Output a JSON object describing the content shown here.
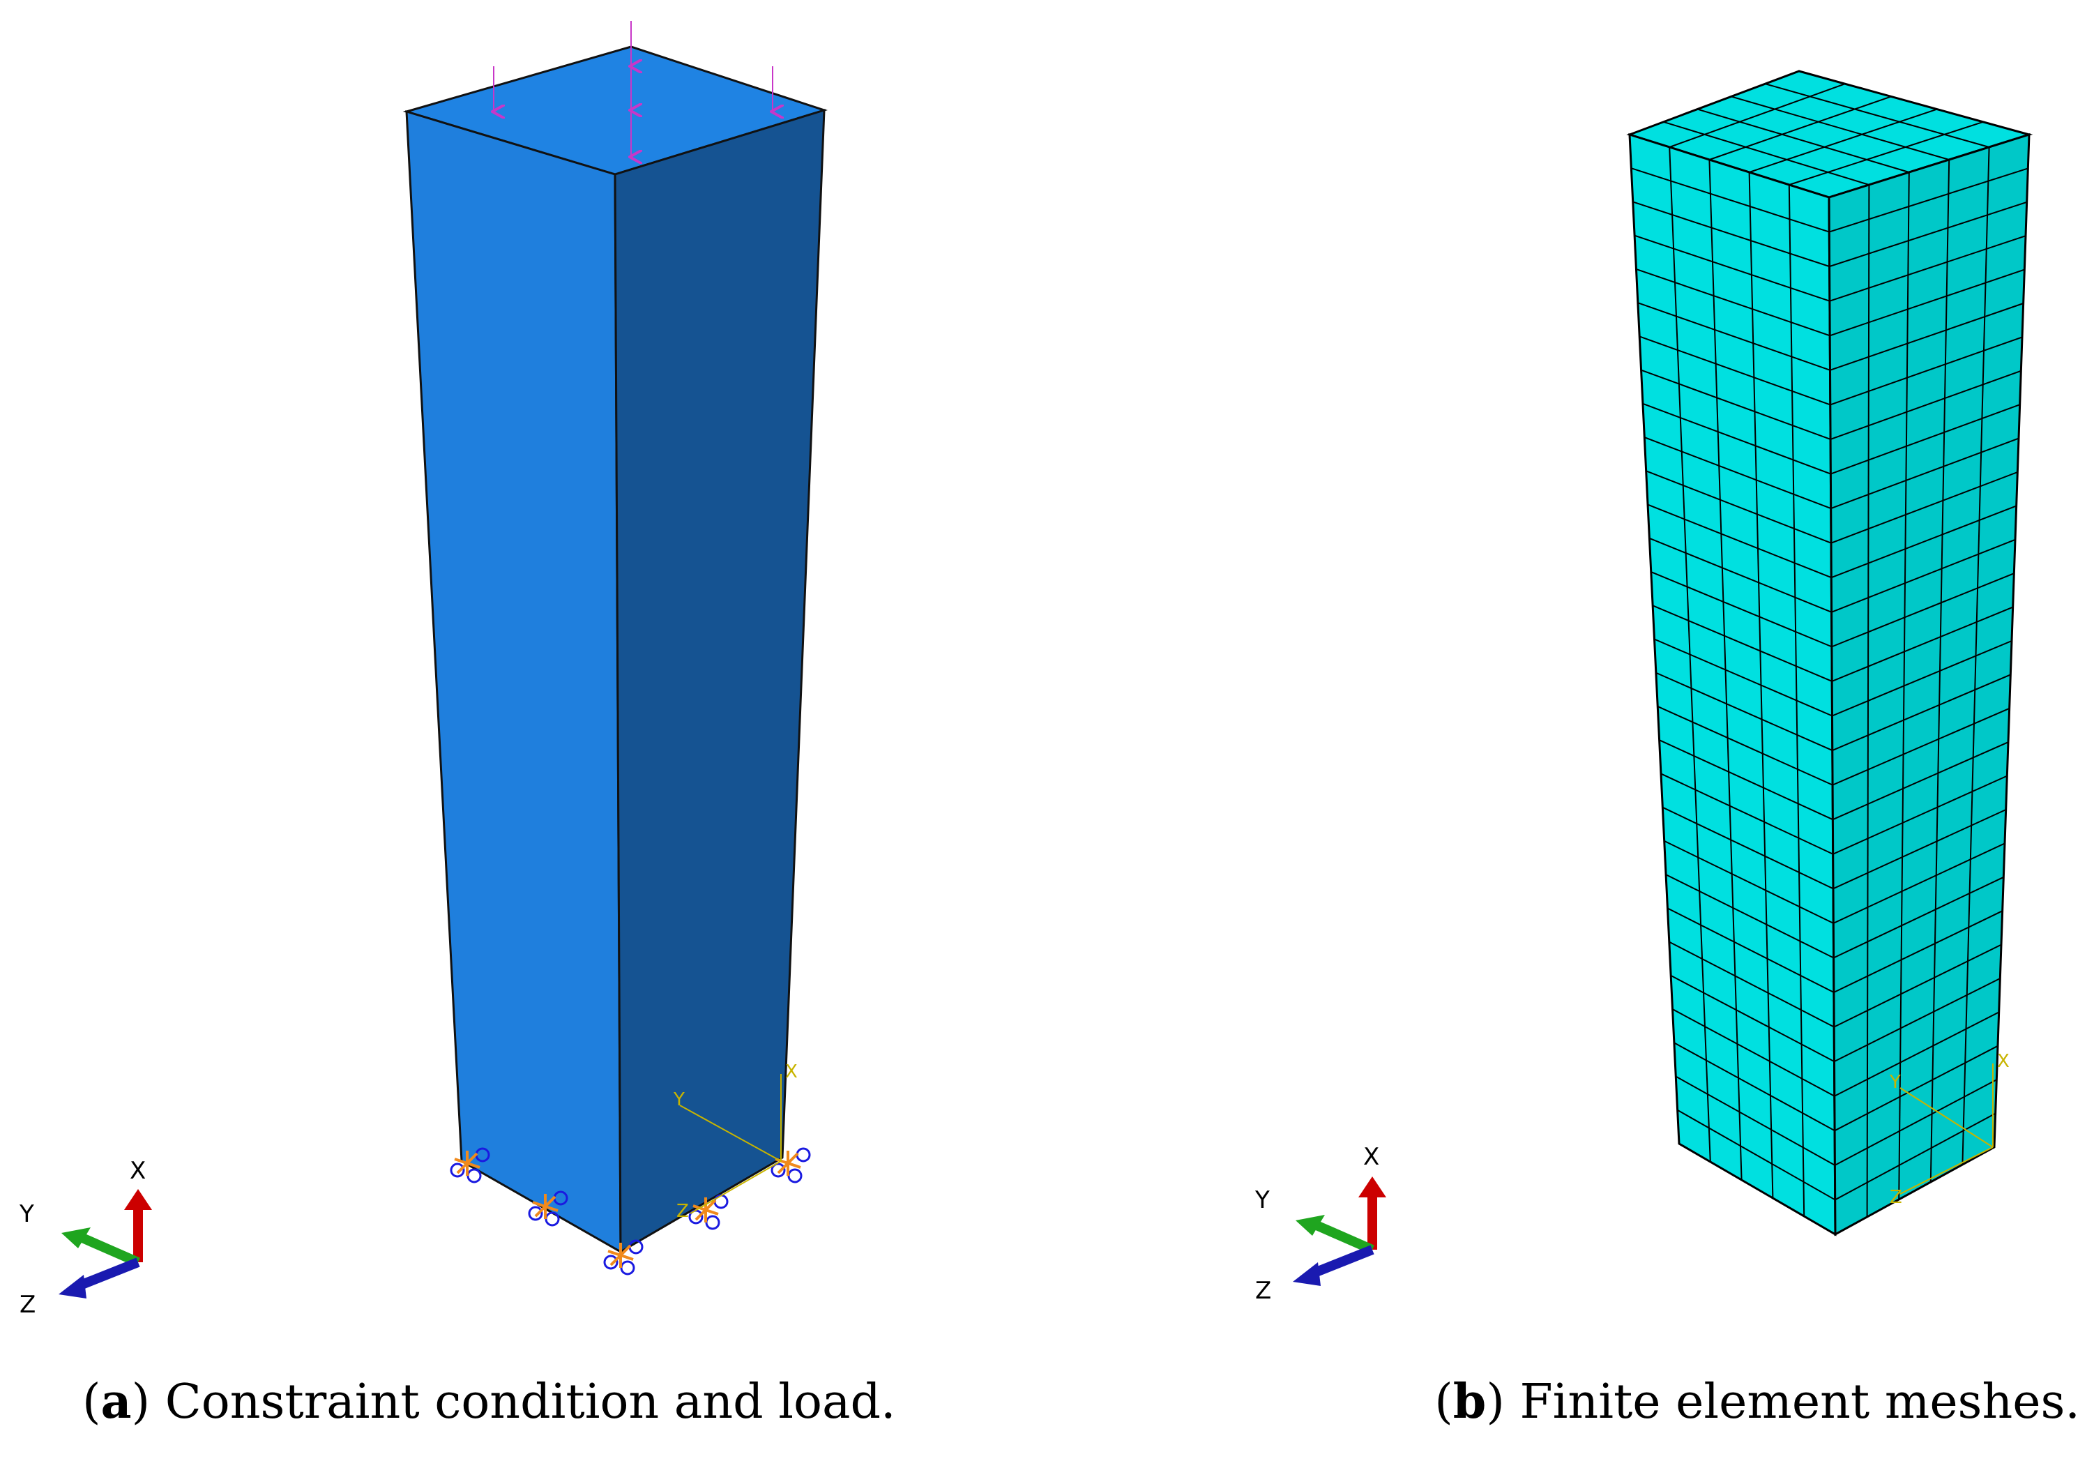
{
  "panel_a": {
    "caption_letter": "a",
    "caption_text": "Constraint condition and load.",
    "triad_labels": {
      "x": "X",
      "y": "Y",
      "z": "Z"
    },
    "local_csys_labels": {
      "x": "X",
      "y": "Y",
      "z": "Z"
    },
    "colors": {
      "top_face": "#1f83e3",
      "front_face": "#1f7fdd",
      "side_face": "#155392",
      "load_arrows": "#c837c8",
      "constraints_orange": "#f08a1c",
      "constraints_blue": "#1a1ae0"
    }
  },
  "panel_b": {
    "caption_letter": "b",
    "caption_text": "Finite element meshes.",
    "triad_labels": {
      "x": "X",
      "y": "Y",
      "z": "Z"
    },
    "local_csys_labels": {
      "x": "X",
      "y": "Y",
      "z": "Z"
    },
    "colors": {
      "mesh_face": "#00e0e0",
      "mesh_side": "#00c2c2",
      "mesh_lines": "#000000"
    }
  },
  "triad_colors": {
    "x": "#cc0000",
    "y": "#1fa51f",
    "z": "#1a1ab0"
  },
  "csys_color": "#c8b400"
}
